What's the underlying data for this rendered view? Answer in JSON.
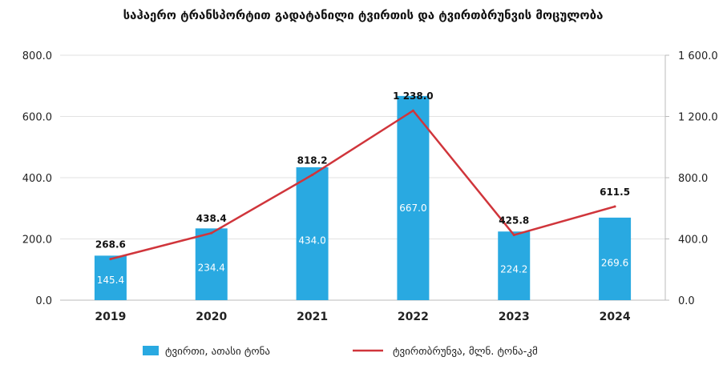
{
  "chart_data": {
    "type": "bar",
    "title": "საჰაერო ტრანსპორტით გადატანილი ტვირთის და ტვირთბრუნვის მოცულობა",
    "categories": [
      "2019",
      "2020",
      "2021",
      "2022",
      "2023",
      "2024"
    ],
    "series": [
      {
        "name": "ტვირთი, ათასი ტონა",
        "type": "bar",
        "axis": "left",
        "color": "#29a9e1",
        "values": [
          145.4,
          234.4,
          434.0,
          667.0,
          224.2,
          269.6
        ],
        "labels": [
          "145.4",
          "234.4",
          "434.0",
          "667.0",
          "224.2",
          "269.6"
        ]
      },
      {
        "name": "ტვირთბრუნვა, მლნ. ტონა-კმ",
        "type": "line",
        "axis": "right",
        "color": "#d0353b",
        "values": [
          268.6,
          438.4,
          818.2,
          1238.0,
          425.8,
          611.5
        ],
        "labels": [
          "268.6",
          "438.4",
          "818.2",
          "1 238.0",
          "425.8",
          "611.5"
        ]
      }
    ],
    "y_left": {
      "min": 0,
      "max": 800,
      "ticks": [
        "0.0",
        "200.0",
        "400.0",
        "600.0",
        "800.0"
      ]
    },
    "y_right": {
      "min": 0,
      "max": 1600,
      "ticks": [
        "0.0",
        "400.0",
        "800.0",
        "1 200.0",
        "1 600.0"
      ]
    },
    "grid": true,
    "legend_position": "bottom"
  }
}
